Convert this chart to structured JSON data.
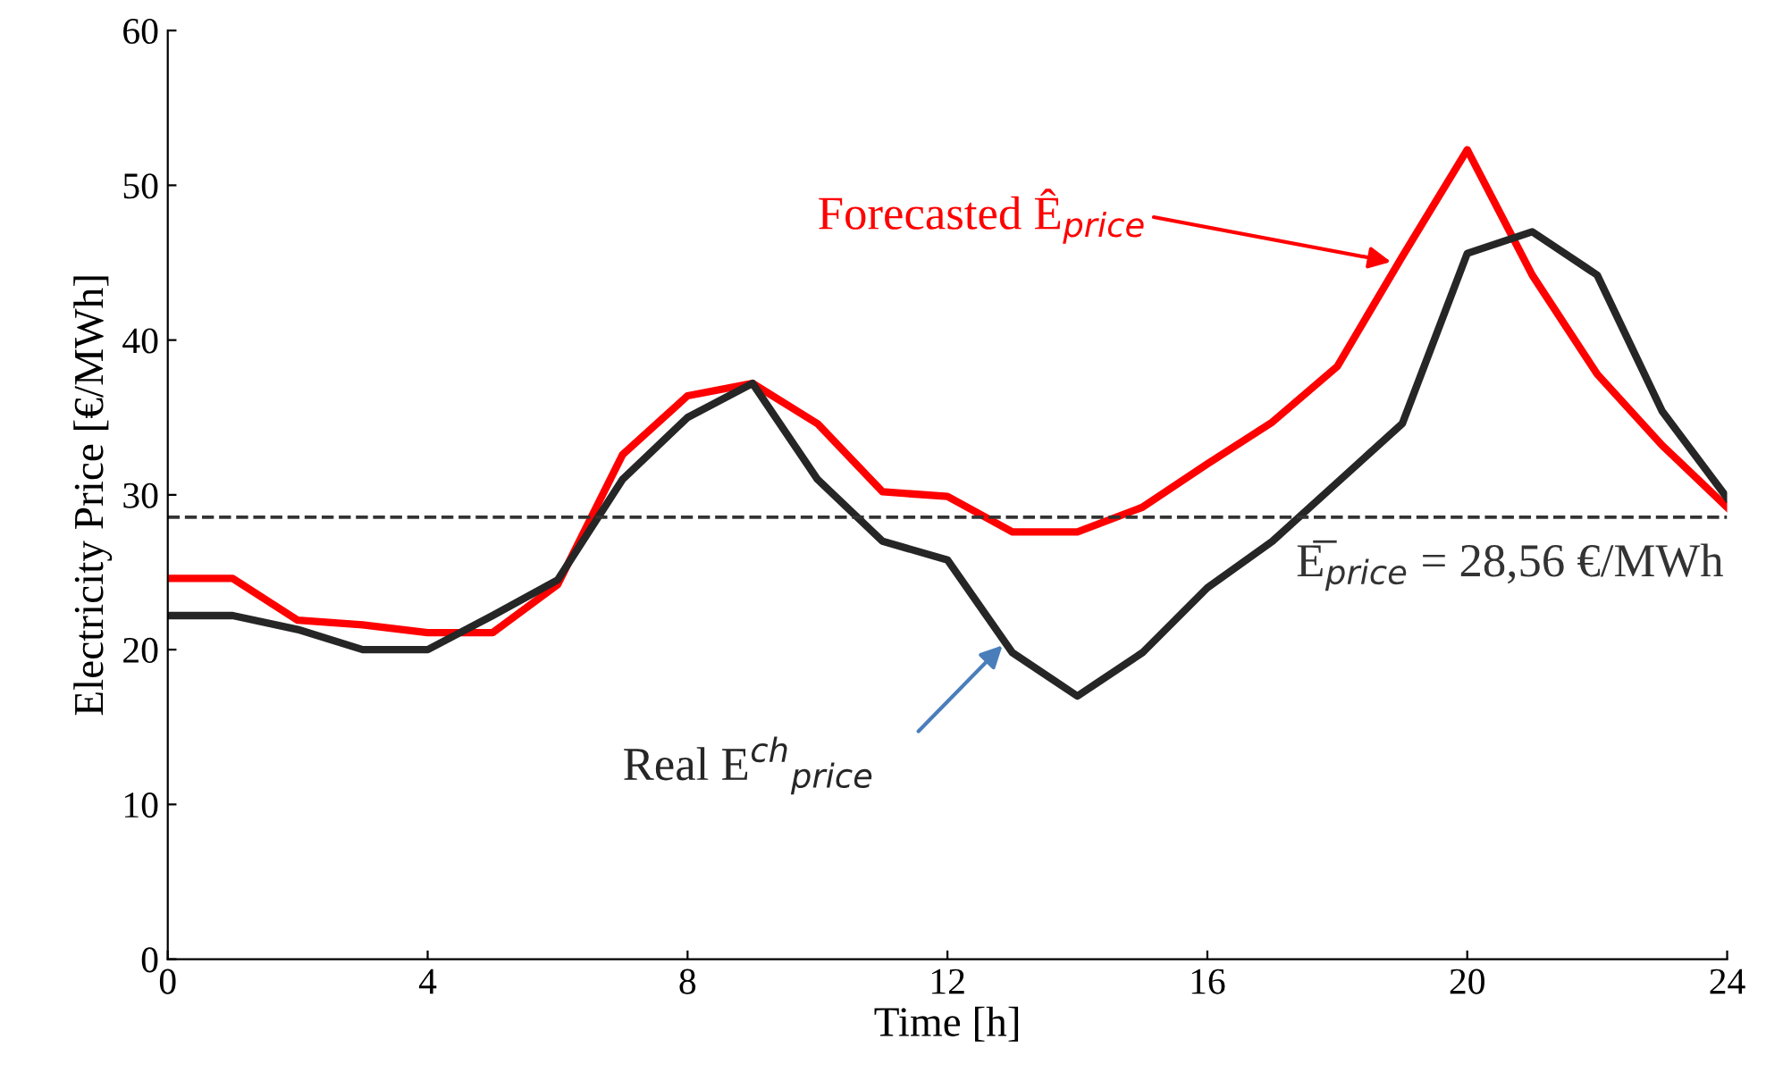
{
  "chart_data": {
    "type": "line",
    "xlabel": "Time [h]",
    "ylabel": "Electricity Price [€/MWh]",
    "x": [
      0,
      1,
      2,
      3,
      4,
      5,
      6,
      7,
      8,
      9,
      10,
      11,
      12,
      13,
      14,
      15,
      16,
      17,
      18,
      19,
      20,
      21,
      22,
      23,
      24
    ],
    "series": [
      {
        "name": "Forecasted Ê$_{price}$",
        "color": "#ff0000",
        "values": [
          24.6,
          24.6,
          21.9,
          21.6,
          21.1,
          21.1,
          24.2,
          32.6,
          36.4,
          37.2,
          34.6,
          30.2,
          29.9,
          27.6,
          27.6,
          29.2,
          32,
          34.7,
          38.3,
          45.4,
          52.3,
          44.2,
          37.8,
          33.2,
          29.2
        ]
      },
      {
        "name": "Real E$^{ch}$$_{price}$",
        "color": "#262626",
        "values": [
          22.2,
          22.2,
          21.3,
          20,
          20,
          22.2,
          24.5,
          31,
          35,
          37.2,
          31,
          27,
          25.8,
          19.8,
          17,
          19.8,
          24,
          27,
          30.8,
          34.6,
          45.6,
          47,
          44.2,
          35.4,
          29.8
        ]
      }
    ],
    "ref_lines": [
      {
        "axis": "y",
        "value": 28.56,
        "label": "E̅$_{price}$ = 28,56 €/MWh",
        "color": "#333333",
        "line_style": "dashed"
      }
    ],
    "xlim": [
      0,
      24
    ],
    "ylim": [
      0,
      60
    ],
    "xticks": [
      0,
      4,
      8,
      12,
      16,
      20,
      24
    ],
    "yticks": [
      0,
      10,
      20,
      30,
      40,
      50,
      60
    ],
    "grid": false,
    "legend": "top",
    "marker": "none",
    "line_style": "solid"
  }
}
